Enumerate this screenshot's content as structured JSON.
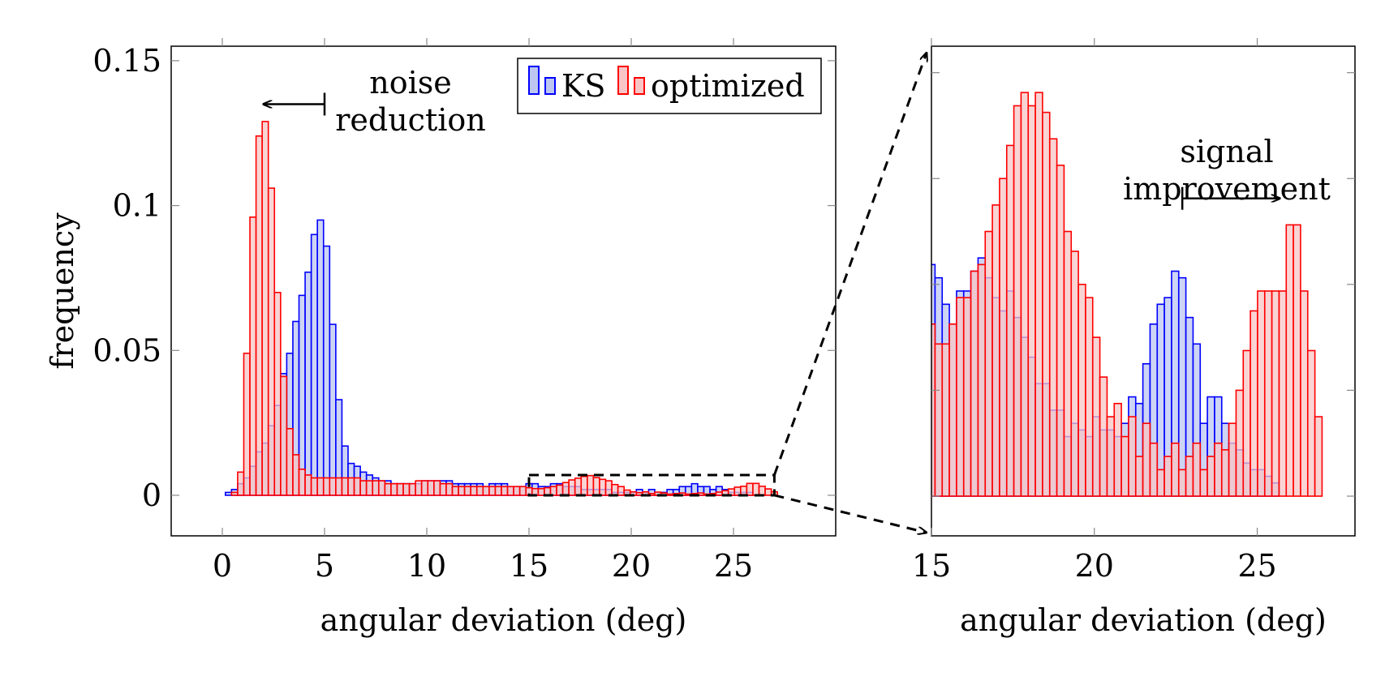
{
  "chart_data": [
    {
      "type": "bar",
      "xlabel": "angular deviation (deg)",
      "ylabel": "frequency",
      "xlim": [
        -2.5,
        30
      ],
      "ylim": [
        -0.014,
        0.155
      ],
      "xticks": [
        0,
        5,
        10,
        15,
        20,
        25
      ],
      "yticks": [
        0,
        0.05,
        0.1,
        0.15
      ],
      "ytick_labels": [
        "0",
        "0.05",
        "0.1",
        "0.15"
      ],
      "grid": false,
      "legend_position": "top-right",
      "bin_width": 0.3,
      "series": [
        {
          "name": "KS",
          "x": [
            -0.3,
            0.0,
            0.3,
            0.6,
            0.9,
            1.2,
            1.5,
            1.8,
            2.1,
            2.4,
            2.7,
            3.0,
            3.3,
            3.6,
            3.9,
            4.2,
            4.5,
            4.8,
            5.1,
            5.4,
            5.7,
            6.0,
            6.3,
            6.6,
            6.9,
            7.2,
            7.5,
            7.8,
            8.1,
            8.4,
            8.7,
            9.0,
            9.3,
            9.6,
            9.9,
            10.2,
            10.5,
            10.8,
            11.1,
            11.4,
            11.7,
            12.0,
            12.3,
            12.6,
            12.9,
            13.2,
            13.5,
            13.8,
            14.1,
            14.4,
            14.7,
            15.0,
            15.3,
            15.6,
            15.9,
            16.2,
            16.5,
            16.8,
            17.1,
            17.4,
            17.7,
            18.0,
            18.3,
            18.6,
            18.9,
            19.2,
            19.5,
            19.8,
            20.1,
            20.4,
            20.7,
            21.0,
            21.3,
            21.6,
            21.9,
            22.2,
            22.5,
            22.8,
            23.1,
            23.4,
            23.7,
            24.0,
            24.3,
            24.6,
            24.9,
            25.2,
            25.5,
            25.8
          ],
          "values": [
            0.0,
            0.0,
            0.001,
            0.002,
            0.004,
            0.006,
            0.01,
            0.015,
            0.018,
            0.024,
            0.031,
            0.042,
            0.049,
            0.06,
            0.069,
            0.077,
            0.09,
            0.095,
            0.086,
            0.059,
            0.033,
            0.017,
            0.011,
            0.01,
            0.008,
            0.007,
            0.006,
            0.005,
            0.005,
            0.004,
            0.004,
            0.004,
            0.004,
            0.004,
            0.005,
            0.005,
            0.005,
            0.005,
            0.005,
            0.004,
            0.004,
            0.004,
            0.004,
            0.004,
            0.003,
            0.004,
            0.004,
            0.004,
            0.003,
            0.003,
            0.003,
            0.004,
            0.004,
            0.003,
            0.003,
            0.004,
            0.004,
            0.003,
            0.003,
            0.003,
            0.002,
            0.002,
            0.002,
            0.002,
            0.002,
            0.001,
            0.001,
            0.001,
            0.001,
            0.002,
            0.001,
            0.002,
            0.001,
            0.001,
            0.002,
            0.002,
            0.003,
            0.003,
            0.004,
            0.003,
            0.003,
            0.002,
            0.003,
            0.002,
            0.001,
            0.001,
            0.001,
            0.001
          ],
          "color": "#0000ff",
          "fill": "#bcc6f0"
        },
        {
          "name": "optimized",
          "x": [
            0.3,
            0.6,
            0.9,
            1.2,
            1.5,
            1.8,
            2.1,
            2.4,
            2.7,
            3.0,
            3.3,
            3.6,
            3.9,
            4.2,
            4.5,
            4.8,
            5.1,
            5.4,
            5.7,
            6.0,
            6.3,
            6.6,
            6.9,
            7.2,
            7.5,
            7.8,
            8.1,
            8.4,
            8.7,
            9.0,
            9.3,
            9.6,
            9.9,
            10.2,
            10.5,
            10.8,
            11.1,
            11.4,
            11.7,
            12.0,
            12.3,
            12.6,
            12.9,
            13.2,
            13.5,
            13.8,
            14.1,
            14.4,
            14.7,
            15.0,
            15.3,
            15.6,
            15.9,
            16.2,
            16.5,
            16.8,
            17.1,
            17.4,
            17.7,
            18.0,
            18.3,
            18.6,
            18.9,
            19.2,
            19.5,
            19.8,
            20.1,
            20.4,
            20.7,
            21.0,
            21.3,
            21.6,
            21.9,
            22.2,
            22.5,
            22.8,
            23.1,
            23.4,
            23.7,
            24.0,
            24.3,
            24.6,
            24.9,
            25.2,
            25.5,
            25.8,
            26.1,
            26.4,
            26.7,
            27.0
          ],
          "values": [
            0.0,
            0.001,
            0.008,
            0.049,
            0.096,
            0.124,
            0.129,
            0.106,
            0.07,
            0.041,
            0.023,
            0.014,
            0.009,
            0.007,
            0.006,
            0.006,
            0.006,
            0.006,
            0.006,
            0.006,
            0.006,
            0.006,
            0.005,
            0.005,
            0.005,
            0.005,
            0.004,
            0.004,
            0.004,
            0.004,
            0.004,
            0.005,
            0.005,
            0.005,
            0.005,
            0.004,
            0.004,
            0.003,
            0.003,
            0.003,
            0.003,
            0.003,
            0.003,
            0.003,
            0.003,
            0.003,
            0.003,
            0.003,
            0.003,
            0.0026,
            0.0023,
            0.0023,
            0.0026,
            0.003,
            0.0035,
            0.0044,
            0.0053,
            0.0059,
            0.0065,
            0.0068,
            0.0061,
            0.0055,
            0.005,
            0.0037,
            0.003,
            0.0018,
            0.0012,
            0.0009,
            0.0012,
            0.0006,
            0.0011,
            0.0008,
            0.0004,
            0.0006,
            0.0008,
            0.0004,
            0.0006,
            0.0008,
            0.0004,
            0.0006,
            0.0011,
            0.0016,
            0.0022,
            0.0028,
            0.0031,
            0.0041,
            0.0041,
            0.0031,
            0.0022,
            0.0012
          ],
          "color": "#ff0000",
          "fill": "#f7c5c5"
        }
      ],
      "annotations": [
        {
          "text": "noise reduction",
          "lines": [
            "noise",
            "reduction"
          ],
          "arrow_from": [
            5,
            0.135
          ],
          "arrow_to": [
            2,
            0.135
          ]
        }
      ],
      "zoom_region": {
        "xlim": [
          15,
          27
        ],
        "ylim": [
          0,
          0.007
        ]
      }
    },
    {
      "type": "bar",
      "xlabel": "angular deviation (deg)",
      "xlim": [
        15,
        28.0
      ],
      "ylim": [
        -0.0006,
        0.0068
      ],
      "xticks": [
        15,
        20,
        25
      ],
      "grid": false,
      "bin_width": 0.22,
      "series": [
        {
          "name": "KS",
          "x": [
            15.0,
            15.22,
            15.44,
            15.66,
            15.88,
            16.1,
            16.32,
            16.54,
            16.76,
            16.98,
            17.2,
            17.42,
            17.64,
            17.86,
            18.08,
            18.3,
            18.52,
            18.74,
            18.96,
            19.18,
            19.4,
            19.62,
            19.84,
            20.06,
            20.28,
            20.5,
            20.72,
            20.94,
            21.16,
            21.38,
            21.6,
            21.82,
            22.04,
            22.26,
            22.48,
            22.7,
            22.92,
            23.14,
            23.36,
            23.58,
            23.8,
            24.02,
            24.24,
            24.46,
            24.68,
            24.9,
            25.12,
            25.34,
            25.56
          ],
          "values": [
            0.0035,
            0.0033,
            0.0029,
            0.0026,
            0.0031,
            0.0031,
            0.0034,
            0.0036,
            0.0033,
            0.003,
            0.0028,
            0.0031,
            0.0027,
            0.0024,
            0.0021,
            0.0017,
            0.0017,
            0.0013,
            0.0013,
            0.0009,
            0.0011,
            0.001,
            0.0009,
            0.0012,
            0.001,
            0.001,
            0.0009,
            0.0011,
            0.0015,
            0.0014,
            0.002,
            0.0026,
            0.0029,
            0.003,
            0.0034,
            0.0033,
            0.0027,
            0.0023,
            0.0011,
            0.0015,
            0.0015,
            0.0011,
            0.0008,
            0.0007,
            0.0005,
            0.0004,
            0.0004,
            0.0003,
            0.0002
          ],
          "color": "#0000ff",
          "fill": "#bcc6f0"
        },
        {
          "name": "optimized",
          "x": [
            15.0,
            15.22,
            15.44,
            15.66,
            15.88,
            16.1,
            16.32,
            16.54,
            16.76,
            16.98,
            17.2,
            17.42,
            17.64,
            17.86,
            18.08,
            18.3,
            18.52,
            18.74,
            18.96,
            19.18,
            19.4,
            19.62,
            19.84,
            20.06,
            20.28,
            20.5,
            20.72,
            20.94,
            21.16,
            21.38,
            21.6,
            21.82,
            22.04,
            22.26,
            22.48,
            22.7,
            22.92,
            23.14,
            23.36,
            23.58,
            23.8,
            24.02,
            24.24,
            24.46,
            24.68,
            24.9,
            25.12,
            25.34,
            25.56,
            25.78,
            26.0,
            26.22,
            26.44,
            26.66,
            26.88
          ],
          "values": [
            0.0026,
            0.0023,
            0.0023,
            0.0026,
            0.003,
            0.003,
            0.0034,
            0.0035,
            0.004,
            0.0044,
            0.0048,
            0.0053,
            0.0059,
            0.0061,
            0.0059,
            0.0061,
            0.0058,
            0.0054,
            0.005,
            0.004,
            0.0037,
            0.0032,
            0.003,
            0.0024,
            0.0018,
            0.0012,
            0.0014,
            0.0009,
            0.0012,
            0.0006,
            0.0011,
            0.0008,
            0.0004,
            0.0006,
            0.0008,
            0.0004,
            0.0006,
            0.0008,
            0.0004,
            0.0006,
            0.0008,
            0.0007,
            0.0011,
            0.0016,
            0.0022,
            0.0028,
            0.0031,
            0.0031,
            0.0031,
            0.0031,
            0.0041,
            0.0041,
            0.0031,
            0.0022,
            0.0012
          ],
          "color": "#ff0000",
          "fill": "#f7c5c5"
        }
      ],
      "annotations": [
        {
          "text": "signal improvement",
          "lines": [
            "signal",
            "improvement"
          ],
          "arrow_from": [
            22.7,
            0.0045
          ],
          "arrow_to": [
            25.7,
            0.0045
          ]
        }
      ]
    }
  ]
}
